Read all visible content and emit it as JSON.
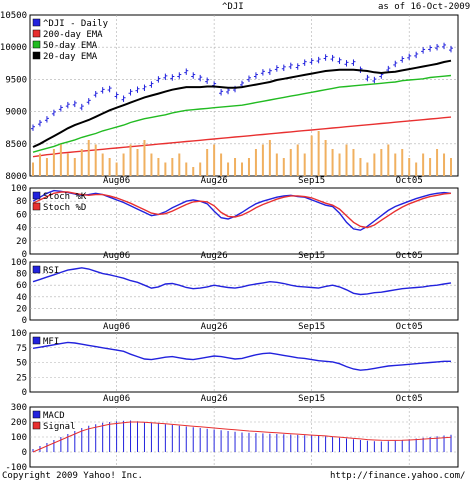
{
  "header": {
    "symbol": "^DJI",
    "as_of": "as of 16-Oct-2009"
  },
  "footer": {
    "copyright": "Copyright 2009 Yahoo! Inc.",
    "url": "http://finance.yahoo.com/"
  },
  "colors": {
    "blue": "#2222dd",
    "red": "#e83030",
    "green": "#22bb22",
    "black": "#000000",
    "volume": "#f0b060",
    "grid": "#b0b0b0"
  },
  "chart_data": [
    {
      "type": "line",
      "panel": "price",
      "x_tick_labels": [
        "Aug06",
        "Aug26",
        "Sep15",
        "Oct05"
      ],
      "ylim": [
        8000,
        10500
      ],
      "y_ticks": [
        8000,
        8500,
        9000,
        9500,
        10000,
        10500
      ],
      "legend": [
        {
          "label": "^DJI - Daily",
          "color": "#2222dd"
        },
        {
          "label": "200-day EMA",
          "color": "#e83030"
        },
        {
          "label": "50-day EMA",
          "color": "#22bb22"
        },
        {
          "label": "20-day EMA",
          "color": "#000000"
        }
      ],
      "series": [
        {
          "name": "^DJI - Daily",
          "style": "ohlc",
          "color": "#2222dd",
          "values": [
            8750,
            8820,
            8880,
            8980,
            9050,
            9100,
            9120,
            9070,
            9160,
            9270,
            9330,
            9350,
            9250,
            9200,
            9300,
            9340,
            9370,
            9420,
            9500,
            9540,
            9530,
            9560,
            9620,
            9560,
            9520,
            9480,
            9420,
            9300,
            9320,
            9350,
            9430,
            9510,
            9560,
            9610,
            9620,
            9670,
            9680,
            9710,
            9700,
            9760,
            9780,
            9800,
            9840,
            9830,
            9790,
            9750,
            9760,
            9650,
            9520,
            9490,
            9560,
            9660,
            9740,
            9810,
            9850,
            9880,
            9950,
            9980,
            10000,
            10020,
            9970
          ]
        },
        {
          "name": "20-day EMA",
          "color": "#000000",
          "values": [
            8450,
            8500,
            8560,
            8620,
            8680,
            8740,
            8790,
            8830,
            8870,
            8920,
            8970,
            9020,
            9060,
            9100,
            9140,
            9180,
            9220,
            9250,
            9280,
            9310,
            9340,
            9360,
            9380,
            9380,
            9380,
            9390,
            9390,
            9380,
            9370,
            9370,
            9380,
            9400,
            9420,
            9440,
            9460,
            9490,
            9510,
            9530,
            9550,
            9570,
            9590,
            9610,
            9630,
            9640,
            9650,
            9650,
            9650,
            9640,
            9630,
            9610,
            9600,
            9610,
            9620,
            9640,
            9660,
            9680,
            9700,
            9720,
            9740,
            9770,
            9790
          ]
        },
        {
          "name": "50-day EMA",
          "color": "#22bb22",
          "values": [
            8370,
            8400,
            8430,
            8460,
            8500,
            8530,
            8560,
            8600,
            8630,
            8660,
            8700,
            8730,
            8760,
            8790,
            8830,
            8860,
            8890,
            8910,
            8930,
            8950,
            8980,
            9000,
            9020,
            9030,
            9040,
            9050,
            9060,
            9070,
            9080,
            9090,
            9100,
            9120,
            9140,
            9160,
            9180,
            9200,
            9220,
            9240,
            9260,
            9280,
            9300,
            9320,
            9340,
            9360,
            9380,
            9390,
            9400,
            9410,
            9420,
            9430,
            9440,
            9450,
            9460,
            9480,
            9490,
            9500,
            9510,
            9530,
            9540,
            9550,
            9560
          ]
        },
        {
          "name": "200-day EMA",
          "color": "#e83030",
          "values": [
            8300,
            8315,
            8330,
            8340,
            8355,
            8365,
            8375,
            8385,
            8395,
            8405,
            8415,
            8425,
            8435,
            8445,
            8455,
            8465,
            8475,
            8485,
            8495,
            8505,
            8515,
            8525,
            8535,
            8545,
            8555,
            8565,
            8575,
            8585,
            8595,
            8605,
            8615,
            8625,
            8635,
            8645,
            8655,
            8665,
            8675,
            8685,
            8695,
            8705,
            8715,
            8725,
            8735,
            8745,
            8755,
            8765,
            8775,
            8785,
            8795,
            8805,
            8815,
            8825,
            8835,
            8845,
            8855,
            8865,
            8875,
            8885,
            8895,
            8905,
            8915
          ]
        },
        {
          "name": "Volume",
          "style": "bar",
          "color": "#f0b060",
          "values": [
            0.3,
            0.5,
            0.4,
            0.6,
            0.7,
            0.5,
            0.4,
            0.6,
            0.8,
            0.7,
            0.5,
            0.4,
            0.3,
            0.5,
            0.7,
            0.6,
            0.8,
            0.5,
            0.4,
            0.3,
            0.4,
            0.5,
            0.3,
            0.2,
            0.3,
            0.6,
            0.7,
            0.5,
            0.3,
            0.4,
            0.3,
            0.4,
            0.6,
            0.7,
            0.8,
            0.5,
            0.4,
            0.6,
            0.7,
            0.5,
            0.9,
            1.0,
            0.8,
            0.6,
            0.5,
            0.7,
            0.6,
            0.4,
            0.3,
            0.5,
            0.6,
            0.7,
            0.5,
            0.6,
            0.4,
            0.3,
            0.5,
            0.4,
            0.6,
            0.5,
            0.4
          ]
        }
      ]
    },
    {
      "type": "line",
      "panel": "stochastic",
      "ylim": [
        0,
        100
      ],
      "y_ticks": [
        0,
        20,
        40,
        60,
        80,
        100
      ],
      "legend": [
        {
          "label": "Stoch %K",
          "color": "#2222dd"
        },
        {
          "label": "Stoch %D",
          "color": "#e83030"
        }
      ],
      "series": [
        {
          "name": "Stoch %K",
          "color": "#2222dd",
          "values": [
            80,
            86,
            92,
            96,
            95,
            93,
            91,
            89,
            90,
            92,
            90,
            86,
            82,
            78,
            73,
            68,
            63,
            58,
            60,
            64,
            70,
            75,
            80,
            82,
            80,
            76,
            65,
            55,
            53,
            57,
            63,
            70,
            76,
            80,
            83,
            86,
            88,
            89,
            87,
            86,
            82,
            78,
            74,
            72,
            62,
            48,
            38,
            36,
            42,
            50,
            58,
            66,
            72,
            76,
            80,
            84,
            87,
            90,
            92,
            93,
            92
          ]
        },
        {
          "name": "Stoch %D",
          "color": "#e83030",
          "values": [
            77,
            82,
            87,
            92,
            94,
            94,
            92,
            90,
            89,
            90,
            90,
            88,
            85,
            81,
            77,
            72,
            67,
            62,
            60,
            61,
            65,
            70,
            75,
            79,
            80,
            79,
            73,
            63,
            57,
            56,
            59,
            64,
            70,
            75,
            79,
            83,
            86,
            88,
            88,
            87,
            85,
            81,
            77,
            74,
            68,
            58,
            48,
            42,
            40,
            44,
            51,
            58,
            65,
            71,
            76,
            80,
            84,
            87,
            89,
            91,
            92
          ]
        }
      ]
    },
    {
      "type": "line",
      "panel": "rsi",
      "ylim": [
        0,
        100
      ],
      "y_ticks": [
        0,
        20,
        40,
        60,
        80,
        100
      ],
      "legend": [
        {
          "label": "RSI",
          "color": "#2222dd"
        }
      ],
      "series": [
        {
          "name": "RSI",
          "color": "#2222dd",
          "values": [
            66,
            70,
            74,
            78,
            82,
            86,
            88,
            90,
            88,
            84,
            80,
            78,
            75,
            72,
            68,
            65,
            60,
            55,
            57,
            62,
            63,
            60,
            56,
            54,
            55,
            57,
            60,
            58,
            56,
            55,
            57,
            60,
            62,
            64,
            66,
            65,
            63,
            60,
            58,
            57,
            56,
            55,
            58,
            60,
            57,
            52,
            46,
            44,
            45,
            47,
            48,
            50,
            52,
            54,
            55,
            56,
            57,
            59,
            60,
            62,
            64
          ]
        }
      ]
    },
    {
      "type": "line",
      "panel": "mfi",
      "ylim": [
        0,
        100
      ],
      "y_ticks": [
        0,
        25,
        50,
        75,
        100
      ],
      "legend": [
        {
          "label": "MFI",
          "color": "#2222dd"
        }
      ],
      "series": [
        {
          "name": "MFI",
          "color": "#2222dd",
          "values": [
            74,
            76,
            78,
            80,
            82,
            84,
            83,
            81,
            79,
            77,
            75,
            73,
            71,
            69,
            64,
            60,
            56,
            55,
            57,
            59,
            60,
            58,
            56,
            55,
            57,
            59,
            61,
            60,
            58,
            56,
            57,
            60,
            63,
            65,
            66,
            64,
            62,
            60,
            58,
            57,
            55,
            53,
            52,
            51,
            48,
            43,
            39,
            37,
            38,
            40,
            42,
            44,
            45,
            46,
            47,
            48,
            49,
            50,
            51,
            52,
            52
          ]
        }
      ]
    },
    {
      "type": "bar",
      "panel": "macd",
      "ylim": [
        -100,
        300
      ],
      "y_ticks": [
        -100,
        0,
        100,
        200,
        300
      ],
      "legend": [
        {
          "label": "MACD",
          "color": "#2222dd"
        },
        {
          "label": "Signal",
          "color": "#e83030"
        }
      ],
      "series": [
        {
          "name": "MACD",
          "style": "bar",
          "color": "#2222dd",
          "values": [
            20,
            40,
            60,
            80,
            100,
            120,
            140,
            160,
            175,
            185,
            195,
            200,
            205,
            208,
            210,
            205,
            200,
            195,
            190,
            185,
            180,
            175,
            170,
            165,
            160,
            155,
            150,
            145,
            140,
            135,
            130,
            128,
            126,
            124,
            122,
            120,
            118,
            116,
            114,
            112,
            110,
            108,
            105,
            100,
            95,
            90,
            85,
            80,
            75,
            72,
            70,
            72,
            75,
            80,
            85,
            90,
            95,
            100,
            105,
            110,
            115
          ]
        },
        {
          "name": "Signal",
          "color": "#e83030",
          "values": [
            0,
            20,
            40,
            60,
            80,
            100,
            120,
            140,
            155,
            165,
            175,
            185,
            190,
            195,
            200,
            200,
            198,
            195,
            192,
            188,
            184,
            180,
            176,
            172,
            168,
            164,
            160,
            156,
            152,
            148,
            144,
            140,
            137,
            134,
            131,
            128,
            125,
            122,
            119,
            116,
            113,
            110,
            107,
            103,
            99,
            95,
            91,
            87,
            83,
            80,
            78,
            77,
            77,
            78,
            80,
            83,
            86,
            89,
            92,
            95,
            98
          ]
        }
      ]
    }
  ]
}
